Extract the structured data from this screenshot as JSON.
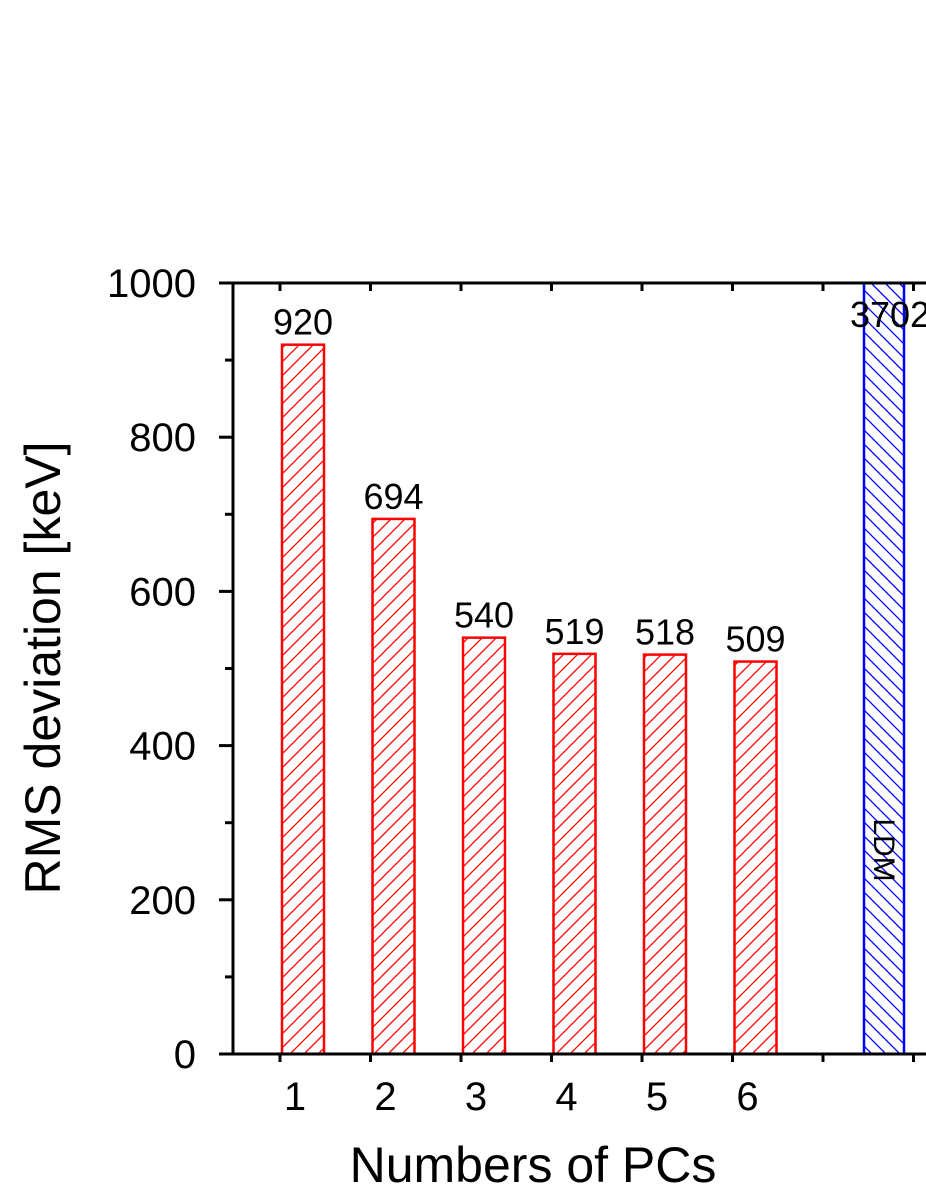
{
  "chart_data": {
    "type": "bar",
    "xlabel": "Numbers of PCs",
    "ylabel": "RMS deviation [keV]",
    "ylim": [
      0,
      1000
    ],
    "yticks": [
      0,
      200,
      400,
      600,
      800,
      1000
    ],
    "yticks_minor": [
      100,
      300,
      500,
      700,
      900
    ],
    "categories": [
      "1",
      "2",
      "3",
      "4",
      "5",
      "6"
    ],
    "values": [
      920,
      694,
      540,
      519,
      518,
      509
    ],
    "data_labels": [
      "920",
      "694",
      "540",
      "519",
      "518",
      "509"
    ],
    "reference_bar": {
      "label": "LDM",
      "value": 3702,
      "data_label": "3702"
    },
    "colors": {
      "pc_bars": "#ff0000",
      "ldm_bar": "#0000ff",
      "axis": "#000000"
    },
    "hatch": {
      "pc_bars": "forward-diagonal",
      "ldm_bar": "back-diagonal"
    },
    "grid": false
  }
}
